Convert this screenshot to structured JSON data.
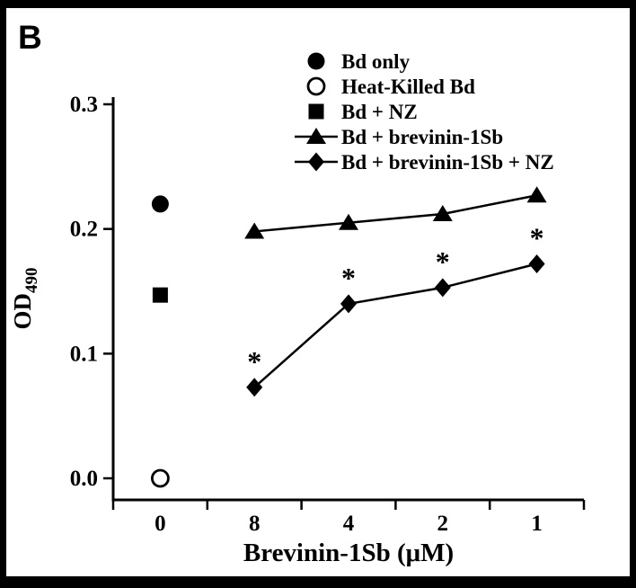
{
  "chart_data": {
    "type": "line",
    "panel_label": "B",
    "xlabel": "Brevinin-1Sb (μM)",
    "ylabel": "OD490",
    "ylabel_base": "OD",
    "ylabel_sub": "490",
    "x_categories": [
      "0",
      "8",
      "4",
      "2",
      "1"
    ],
    "y_tick_labels": [
      "0.0",
      "0.1",
      "0.2",
      "0.3"
    ],
    "ylim": [
      0,
      0.3
    ],
    "grid": false,
    "legend_position": "top-center",
    "significance_symbol": "*",
    "series": [
      {
        "name": "Bd only",
        "marker": "filled-circle",
        "line": false,
        "points": [
          {
            "x": "0",
            "y": 0.22
          }
        ]
      },
      {
        "name": "Heat-Killed Bd",
        "marker": "open-circle",
        "line": false,
        "points": [
          {
            "x": "0",
            "y": 0.0
          }
        ]
      },
      {
        "name": "Bd + NZ",
        "marker": "filled-square",
        "line": false,
        "points": [
          {
            "x": "0",
            "y": 0.147
          }
        ]
      },
      {
        "name": "Bd + brevinin-1Sb",
        "marker": "filled-triangle",
        "line": true,
        "points": [
          {
            "x": "8",
            "y": 0.198
          },
          {
            "x": "4",
            "y": 0.205
          },
          {
            "x": "2",
            "y": 0.212
          },
          {
            "x": "1",
            "y": 0.227
          }
        ]
      },
      {
        "name": "Bd + brevinin-1Sb + NZ",
        "marker": "filled-diamond",
        "line": true,
        "points": [
          {
            "x": "8",
            "y": 0.073
          },
          {
            "x": "4",
            "y": 0.14
          },
          {
            "x": "2",
            "y": 0.153
          },
          {
            "x": "1",
            "y": 0.172
          }
        ],
        "point_annotations": [
          "*",
          "*",
          "*",
          "*"
        ]
      }
    ]
  }
}
